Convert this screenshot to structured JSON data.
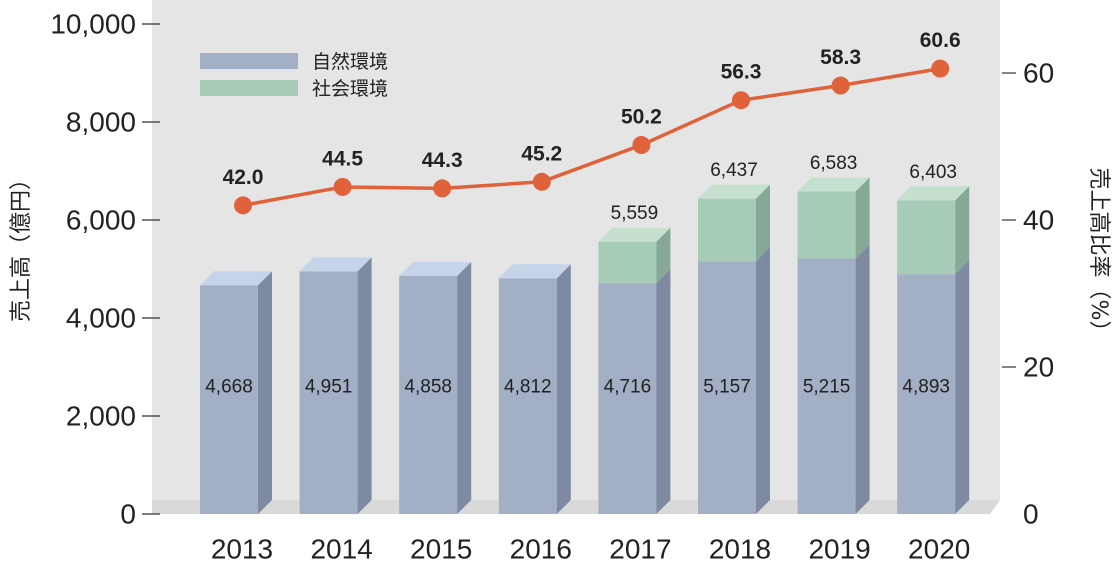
{
  "chart_data": {
    "type": "bar",
    "categories": [
      "2013",
      "2014",
      "2015",
      "2016",
      "2017",
      "2018",
      "2019",
      "2020"
    ],
    "series": [
      {
        "name": "自然環境",
        "values": [
          4668,
          4951,
          4858,
          4812,
          4716,
          5157,
          5215,
          4893
        ]
      },
      {
        "name": "社会環境",
        "values": [
          0,
          0,
          0,
          0,
          843,
          1280,
          1368,
          1510
        ]
      }
    ],
    "bar_value_labels": [
      "4,668",
      "4,951",
      "4,858",
      "4,812",
      "4,716",
      "5,157",
      "5,215",
      "4,893"
    ],
    "total_labels": [
      "",
      "",
      "",
      "",
      "5,559",
      "6,437",
      "6,583",
      "6,403"
    ],
    "line_series": {
      "values": [
        42.0,
        44.5,
        44.3,
        45.2,
        50.2,
        56.3,
        58.3,
        60.6
      ],
      "labels": [
        "42.0",
        "44.5",
        "44.3",
        "45.2",
        "50.2",
        "56.3",
        "58.3",
        "60.6"
      ],
      "color": "#e0623a"
    },
    "ylabel": "売上高（億円）",
    "y2label": "売上高比率（%）",
    "ylim": [
      0,
      10000
    ],
    "y2lim": [
      0,
      66.67
    ],
    "yticks": [
      "0",
      "2,000",
      "4,000",
      "6,000",
      "8,000",
      "10,000"
    ],
    "y2ticks": [
      "0",
      "20",
      "40",
      "60"
    ],
    "legend_position": "top-left",
    "colors": {
      "nature": "#a3afc5",
      "society": "#a6cbb7",
      "backdrop": "#e5e5e5",
      "line": "#e0623a"
    }
  }
}
